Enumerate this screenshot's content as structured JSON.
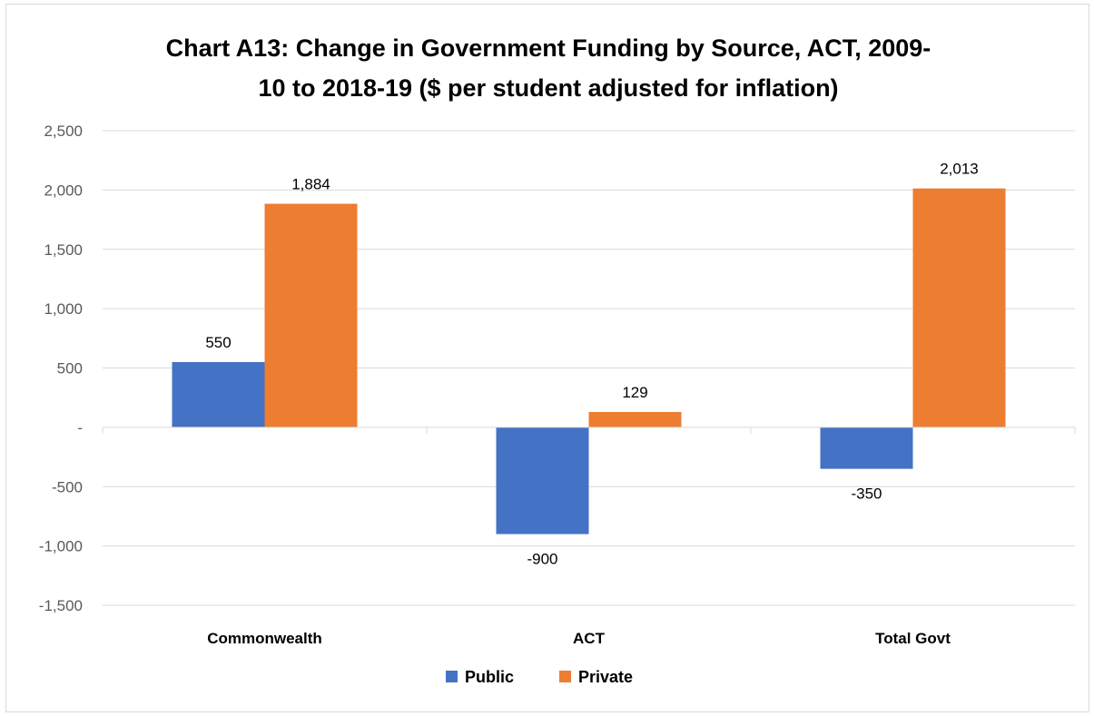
{
  "chart_data": {
    "type": "bar",
    "title_lines": [
      "Chart A13: Change in Government Funding by Source, ACT, 2009-",
      "10 to 2018-19 ($ per student adjusted for inflation)"
    ],
    "categories": [
      "Commonwealth",
      "ACT",
      "Total Govt"
    ],
    "series": [
      {
        "name": "Public",
        "values": [
          550,
          -900,
          -350
        ],
        "labels": [
          "550",
          "-900",
          "-350"
        ],
        "color": "#4472c4"
      },
      {
        "name": "Private",
        "values": [
          1884,
          129,
          2013
        ],
        "labels": [
          "1,884",
          "129",
          "2,013"
        ],
        "color": "#ed7d31"
      }
    ],
    "yticks": [
      {
        "value": 2500,
        "label": "2,500"
      },
      {
        "value": 2000,
        "label": "2,000"
      },
      {
        "value": 1500,
        "label": "1,500"
      },
      {
        "value": 1000,
        "label": "1,000"
      },
      {
        "value": 500,
        "label": "500"
      },
      {
        "value": 0,
        "label": "-"
      },
      {
        "value": -500,
        "label": "-500"
      },
      {
        "value": -1000,
        "label": "-1,000"
      },
      {
        "value": -1500,
        "label": "-1,500"
      }
    ],
    "ylim": [
      -1500,
      2500
    ],
    "grid": true,
    "legend_position": "bottom"
  }
}
